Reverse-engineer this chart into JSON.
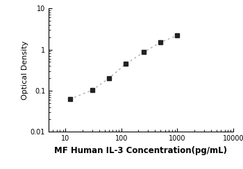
{
  "x_data": [
    12,
    30,
    60,
    120,
    250,
    500,
    1000
  ],
  "y_data": [
    0.062,
    0.103,
    0.2,
    0.45,
    0.86,
    1.5,
    2.2
  ],
  "xlabel": "MF Human IL-3 Concentration(pg/mL)",
  "ylabel": "Optical Density",
  "xlim": [
    5,
    10000
  ],
  "ylim": [
    0.01,
    10
  ],
  "marker": "s",
  "marker_color": "#222222",
  "line_color": "#aaaaaa",
  "line_style": "--",
  "marker_size": 4,
  "line_width": 1.0,
  "xlabel_fontsize": 8.5,
  "ylabel_fontsize": 8,
  "tick_fontsize": 7,
  "xlabel_fontweight": "bold",
  "xticks": [
    10,
    100,
    1000,
    10000
  ],
  "yticks": [
    0.01,
    0.1,
    1,
    10
  ],
  "figure_width": 3.5,
  "figure_height": 2.44,
  "dpi": 100
}
